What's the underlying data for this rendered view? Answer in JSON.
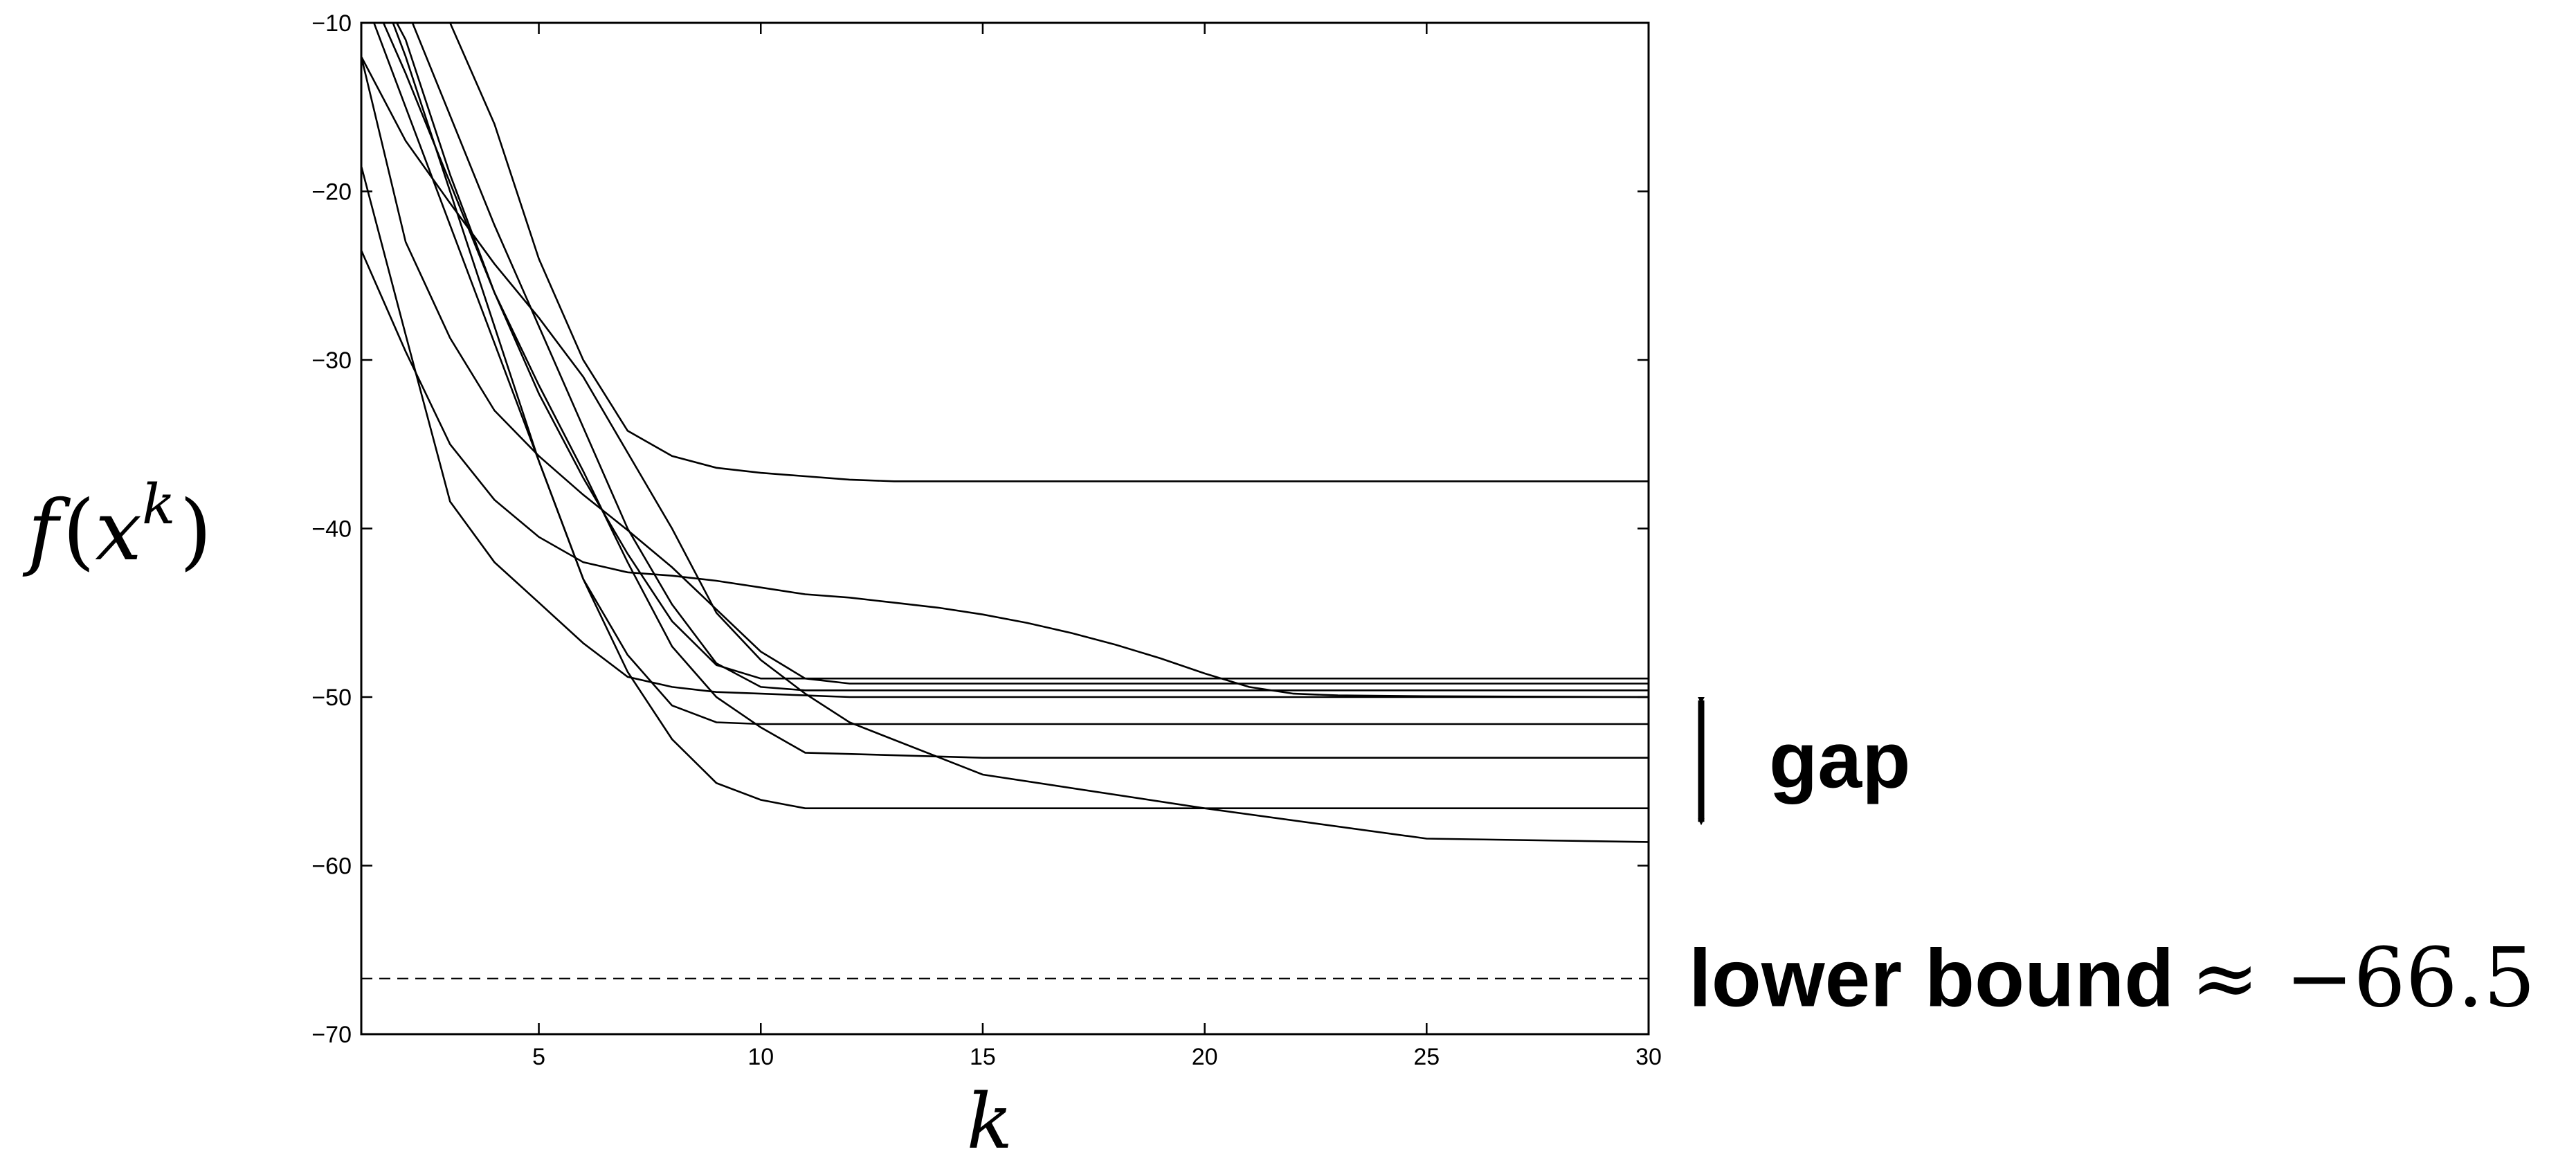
{
  "chart_data": {
    "type": "line",
    "title": "",
    "xlabel": "k",
    "ylabel": "f(x^k)",
    "ylabel_parts": {
      "f": "f",
      "open": "(",
      "x": "x",
      "k": "k",
      "close": ")"
    },
    "xlim": [
      1,
      30
    ],
    "ylim": [
      -70,
      -10
    ],
    "xticks": [
      5,
      10,
      15,
      20,
      25,
      30
    ],
    "yticks": [
      -10,
      -20,
      -30,
      -40,
      -50,
      -60,
      -70
    ],
    "grid": false,
    "series": [
      {
        "x": [
          1,
          2,
          3,
          4,
          5,
          6,
          7,
          8,
          9,
          10,
          11,
          12,
          13,
          14,
          15,
          20,
          25,
          30
        ],
        "y": [
          -5,
          -8,
          -10,
          -16,
          -24,
          -30,
          -34.2,
          -35.7,
          -36.4,
          -36.7,
          -36.9,
          -37.1,
          -37.2,
          -37.2,
          -37.2,
          -37.2,
          -37.2,
          -37.2
        ]
      },
      {
        "x": [
          1,
          2,
          3,
          4,
          5,
          6,
          7,
          8,
          9,
          10,
          11,
          12,
          13,
          14,
          15,
          16,
          17,
          18,
          19,
          20,
          21,
          22,
          23,
          25,
          30
        ],
        "y": [
          -23.5,
          -29.5,
          -35,
          -38.3,
          -40.5,
          -42,
          -42.6,
          -42.8,
          -43.1,
          -43.5,
          -43.9,
          -44.1,
          -44.4,
          -44.7,
          -45.1,
          -45.6,
          -46.2,
          -46.9,
          -47.7,
          -48.6,
          -49.4,
          -49.8,
          -49.9,
          -49.95,
          -50
        ]
      },
      {
        "x": [
          1,
          2,
          3,
          4,
          5,
          6,
          7,
          8,
          9,
          10,
          11,
          12,
          14,
          16,
          18,
          19,
          20,
          25,
          26,
          30
        ],
        "y": [
          -18.5,
          -28.5,
          -38.4,
          -42,
          -44.4,
          -46.8,
          -48.8,
          -49.4,
          -49.7,
          -49.8,
          -49.9,
          -50,
          -50,
          -50,
          -50,
          -50,
          -50,
          -50,
          -50,
          -50
        ]
      },
      {
        "x": [
          1,
          2,
          3,
          4,
          5,
          6,
          7,
          8,
          9,
          10,
          11,
          12,
          15,
          20,
          25,
          30
        ],
        "y": [
          -12,
          -17,
          -20.7,
          -24.3,
          -27.5,
          -31,
          -35.5,
          -40,
          -45,
          -47.8,
          -49.8,
          -51.5,
          -54.6,
          -56.6,
          -58.4,
          -58.6
        ]
      },
      {
        "x": [
          1,
          2,
          3,
          4,
          5,
          6,
          7,
          8,
          9,
          10,
          11,
          12,
          15,
          20,
          25,
          30
        ],
        "y": [
          -12,
          -23,
          -28.7,
          -33,
          -35.7,
          -38,
          -40.1,
          -42.3,
          -44.8,
          -47.3,
          -48.9,
          -49.2,
          -49.2,
          -49.2,
          -49.2,
          -49.2
        ]
      },
      {
        "x": [
          1,
          2,
          3,
          4,
          5,
          6,
          7,
          8,
          9,
          10,
          11,
          15,
          20,
          25,
          30
        ],
        "y": [
          -7,
          -13,
          -19.5,
          -26,
          -31.5,
          -36.6,
          -42,
          -47,
          -50,
          -51.8,
          -53.3,
          -53.6,
          -53.6,
          -53.6,
          -53.6
        ]
      },
      {
        "x": [
          1,
          2,
          3,
          4,
          5,
          6,
          7,
          8,
          9,
          10,
          11,
          15,
          20,
          25,
          30
        ],
        "y": [
          -6,
          -9,
          -15.5,
          -22,
          -28,
          -34,
          -40,
          -44.5,
          -48,
          -49.4,
          -49.6,
          -49.6,
          -49.6,
          -49.6,
          -49.6
        ]
      },
      {
        "x": [
          1,
          2,
          3,
          4,
          5,
          6,
          7,
          8,
          9,
          10,
          11,
          15,
          20,
          25,
          30
        ],
        "y": [
          -8,
          -15,
          -22,
          -29,
          -36,
          -43,
          -47.5,
          -50.5,
          -51.5,
          -51.6,
          -51.6,
          -51.6,
          -51.6,
          -51.6,
          -51.6
        ]
      },
      {
        "x": [
          1,
          2,
          3,
          4,
          5,
          6,
          7,
          8,
          9,
          10,
          11,
          15,
          20,
          25,
          30
        ],
        "y": [
          -5,
          -12,
          -20,
          -28,
          -36,
          -43,
          -48.5,
          -52.5,
          -55.1,
          -56.1,
          -56.6,
          -56.6,
          -56.6,
          -56.6,
          -56.6
        ]
      },
      {
        "x": [
          1,
          2,
          3,
          4,
          5,
          6,
          7,
          8,
          9,
          10,
          11,
          15,
          20,
          25,
          30
        ],
        "y": [
          -6,
          -11,
          -19,
          -26,
          -32,
          -37,
          -41.5,
          -45.5,
          -48.1,
          -48.9,
          -48.9,
          -48.9,
          -48.9,
          -48.9,
          -48.9
        ]
      }
    ],
    "reference_line": {
      "y": -66.7,
      "style": "dashed"
    },
    "annotations": {
      "gap_label": "gap",
      "gap_range": [
        -48.8,
        -58.8
      ],
      "lower_bound_label": "lower bound",
      "lower_bound_math": "≈ −66.5"
    }
  }
}
